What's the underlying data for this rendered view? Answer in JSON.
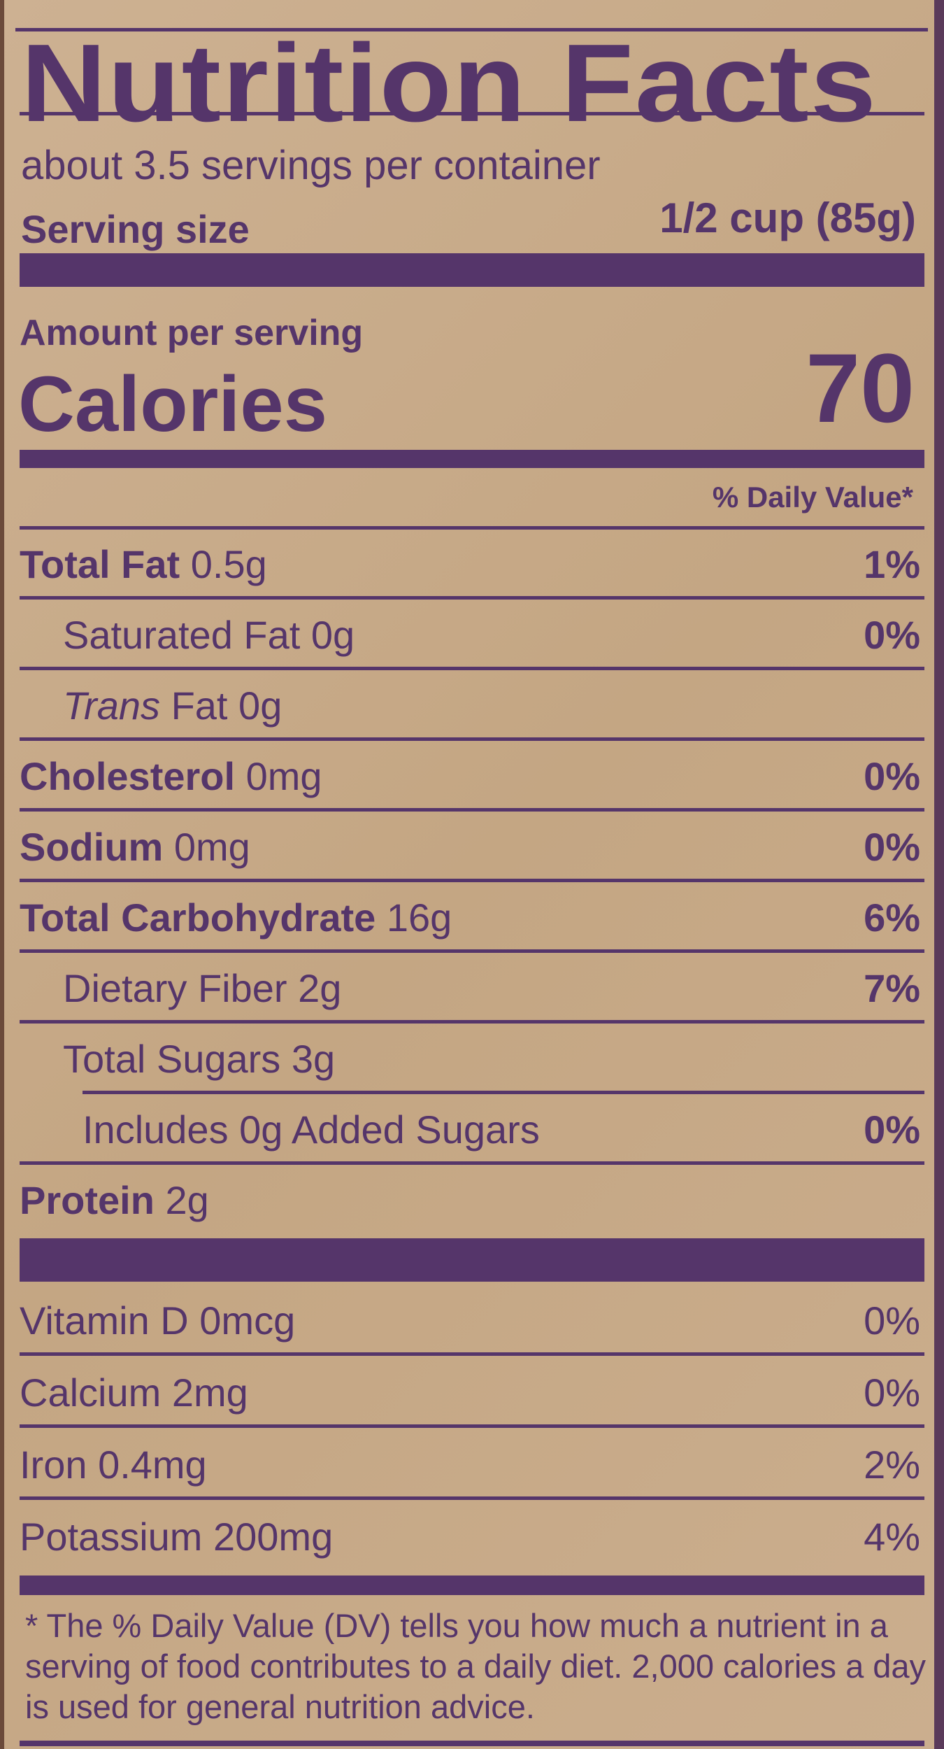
{
  "title": "Nutrition Facts",
  "servings_per_container": "about 3.5 servings per container",
  "serving_size_label": "Serving size",
  "serving_size_value": "1/2 cup (85g)",
  "amount_per_serving": "Amount per serving",
  "calories_label": "Calories",
  "calories_value": "70",
  "daily_value_header": "% Daily Value*",
  "nutrients": [
    {
      "name": "Total Fat",
      "amount": "0.5g",
      "dv": "1%",
      "bold": true,
      "indent": 0
    },
    {
      "name": "Saturated Fat",
      "amount": "0g",
      "dv": "0%",
      "bold": false,
      "indent": 1
    },
    {
      "name": "Trans",
      "name_suffix": "Fat",
      "amount": "0g",
      "dv": "",
      "bold": false,
      "indent": 1,
      "italic": true
    },
    {
      "name": "Cholesterol",
      "amount": "0mg",
      "dv": "0%",
      "bold": true,
      "indent": 0
    },
    {
      "name": "Sodium",
      "amount": "0mg",
      "dv": "0%",
      "bold": true,
      "indent": 0
    },
    {
      "name": "Total Carbohydrate",
      "amount": "16g",
      "dv": "6%",
      "bold": true,
      "indent": 0
    },
    {
      "name": "Dietary Fiber",
      "amount": "2g",
      "dv": "7%",
      "bold": false,
      "indent": 1
    },
    {
      "name": "Total Sugars",
      "amount": "3g",
      "dv": "",
      "bold": false,
      "indent": 1
    },
    {
      "name": "Includes 0g Added Sugars",
      "amount": "",
      "dv": "0%",
      "bold": false,
      "indent": 2
    },
    {
      "name": "Protein",
      "amount": "2g",
      "dv": "",
      "bold": true,
      "indent": 0
    }
  ],
  "vitamins": [
    {
      "name": "Vitamin D",
      "amount": "0mcg",
      "dv": "0%"
    },
    {
      "name": "Calcium",
      "amount": "2mg",
      "dv": "0%"
    },
    {
      "name": "Iron",
      "amount": "0.4mg",
      "dv": "2%"
    },
    {
      "name": "Potassium",
      "amount": "200mg",
      "dv": "4%"
    }
  ],
  "footnote": "* The % Daily Value (DV) tells you how much a nutrient in a serving of food contributes to a daily diet. 2,000 calories a day is used for general nutrition advice.",
  "colors": {
    "ink": "#55356a",
    "paper": "#c7aa88"
  }
}
